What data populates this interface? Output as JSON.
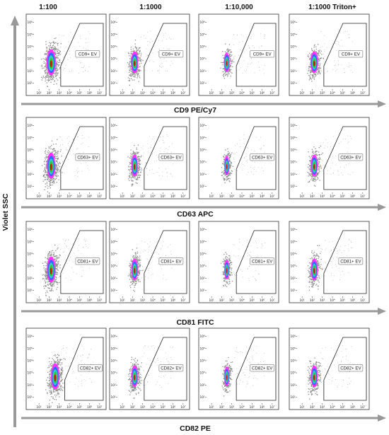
{
  "figure": {
    "y_axis_title": "Violet SSC",
    "colors": {
      "frame": "#333333",
      "gate": "#222222",
      "bulk": "#8c8c8c",
      "halo": "#ff33ff",
      "mid1": "#3366ff",
      "mid2": "#33cccc",
      "mid3": "#33cc33",
      "core": "#d21414",
      "arrow": "#999999"
    }
  },
  "chart_data": {
    "type": "scatter",
    "subtype": "flow-cytometry density plots",
    "columns": [
      "1:100",
      "1:1000",
      "1:10,000",
      "1:1000 Triton+"
    ],
    "ylabel": "Violet SSC",
    "x_ticks": [
      "10¹",
      "10²",
      "10³",
      "10⁴",
      "10⁵",
      "10⁶",
      "10⁷"
    ],
    "y_ticks": [
      "10¹",
      "10²",
      "10³",
      "10⁴",
      "10⁵",
      "10⁶"
    ],
    "rows": [
      {
        "xlabel": "CD9 PE/Cy7",
        "gates": [
          "CD9+ EV",
          "CD9+ EV",
          "CD9+ EV",
          "CD9+ EV"
        ]
      },
      {
        "xlabel": "CD63 APC",
        "gates": [
          "CD63+ EV",
          "CD63+ EV",
          "CD63+ EV",
          "CD63+ EV"
        ]
      },
      {
        "xlabel": "CD81 FITC",
        "gates": [
          "CD81+ EV",
          "CD81+ EV",
          "CD81+ EV",
          "CD81+ EV"
        ]
      },
      {
        "xlabel": "CD82 PE",
        "gates": [
          "CD82+ EV",
          "CD82+ EV",
          "CD82+ EV",
          "CD82+ EV"
        ]
      }
    ]
  }
}
